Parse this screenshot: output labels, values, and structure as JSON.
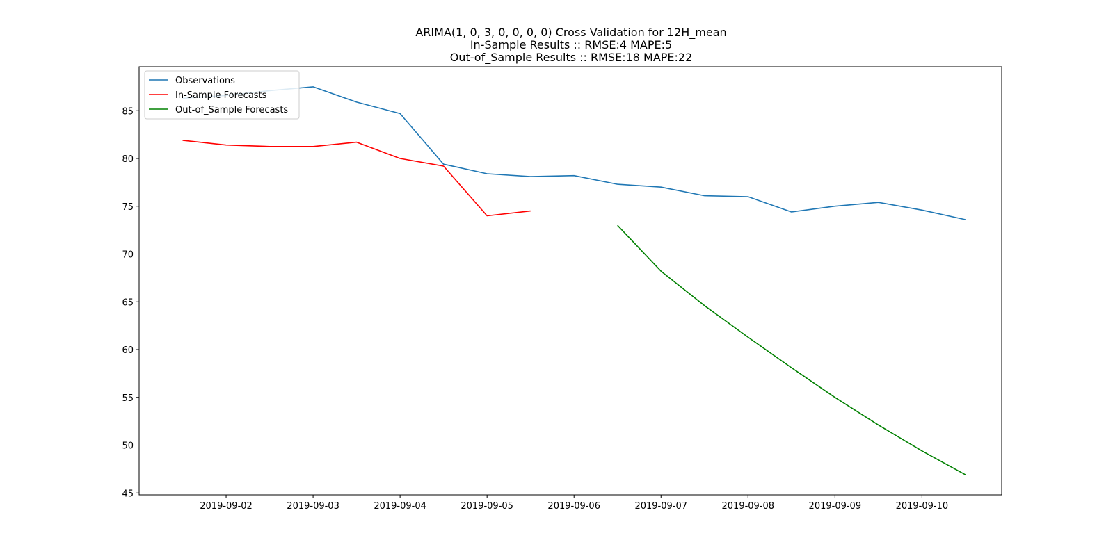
{
  "chart_data": {
    "type": "line",
    "title_lines": [
      "ARIMA(1, 0, 3, 0, 0, 0, 0) Cross Validation for 12H_mean",
      "In-Sample Results :: RMSE:4 MAPE:5",
      "Out-of_Sample Results :: RMSE:18 MAPE:22"
    ],
    "xlabel": "",
    "ylabel": "",
    "x_tick_labels": [
      "2019-09-02",
      "2019-09-03",
      "2019-09-04",
      "2019-09-05",
      "2019-09-06",
      "2019-09-07",
      "2019-09-08",
      "2019-09-09",
      "2019-09-10"
    ],
    "y_ticks": [
      45,
      50,
      55,
      60,
      65,
      70,
      75,
      80,
      85
    ],
    "xlim": [
      "2019-09-01T00:00",
      "2019-09-10T22:00"
    ],
    "ylim": [
      44.8,
      89.6
    ],
    "grid": false,
    "legend_position": "upper-left",
    "series": [
      {
        "name": "Observations",
        "color": "#1f77b4",
        "points": [
          [
            "2019-09-01T12:00",
            86.3
          ],
          [
            "2019-09-02T00:00",
            86.6
          ],
          [
            "2019-09-02T12:00",
            87.1
          ],
          [
            "2019-09-03T00:00",
            87.5
          ],
          [
            "2019-09-03T12:00",
            85.9
          ],
          [
            "2019-09-04T00:00",
            84.7
          ],
          [
            "2019-09-04T12:00",
            79.4
          ],
          [
            "2019-09-05T00:00",
            78.4
          ],
          [
            "2019-09-05T12:00",
            78.1
          ],
          [
            "2019-09-06T00:00",
            78.2
          ],
          [
            "2019-09-06T12:00",
            77.3
          ],
          [
            "2019-09-07T00:00",
            77.0
          ],
          [
            "2019-09-07T12:00",
            76.1
          ],
          [
            "2019-09-08T00:00",
            76.0
          ],
          [
            "2019-09-08T12:00",
            74.4
          ],
          [
            "2019-09-09T00:00",
            75.0
          ],
          [
            "2019-09-09T12:00",
            75.4
          ],
          [
            "2019-09-10T00:00",
            74.6
          ],
          [
            "2019-09-10T12:00",
            73.6
          ]
        ]
      },
      {
        "name": "In-Sample Forecasts",
        "color": "#ff0000",
        "points": [
          [
            "2019-09-01T12:00",
            81.9
          ],
          [
            "2019-09-02T00:00",
            81.4
          ],
          [
            "2019-09-02T12:00",
            81.25
          ],
          [
            "2019-09-03T00:00",
            81.25
          ],
          [
            "2019-09-03T12:00",
            81.7
          ],
          [
            "2019-09-04T00:00",
            80.0
          ],
          [
            "2019-09-04T12:00",
            79.2
          ],
          [
            "2019-09-05T00:00",
            74.0
          ],
          [
            "2019-09-05T12:00",
            74.5
          ]
        ]
      },
      {
        "name": "Out-of_Sample Forecasts",
        "color": "#008000",
        "points": [
          [
            "2019-09-06T12:00",
            73.0
          ],
          [
            "2019-09-07T00:00",
            68.2
          ],
          [
            "2019-09-07T12:00",
            64.6
          ],
          [
            "2019-09-08T00:00",
            61.3
          ],
          [
            "2019-09-08T12:00",
            58.1
          ],
          [
            "2019-09-09T00:00",
            55.0
          ],
          [
            "2019-09-09T12:00",
            52.1
          ],
          [
            "2019-09-10T00:00",
            49.4
          ],
          [
            "2019-09-10T12:00",
            46.9
          ]
        ]
      }
    ]
  }
}
